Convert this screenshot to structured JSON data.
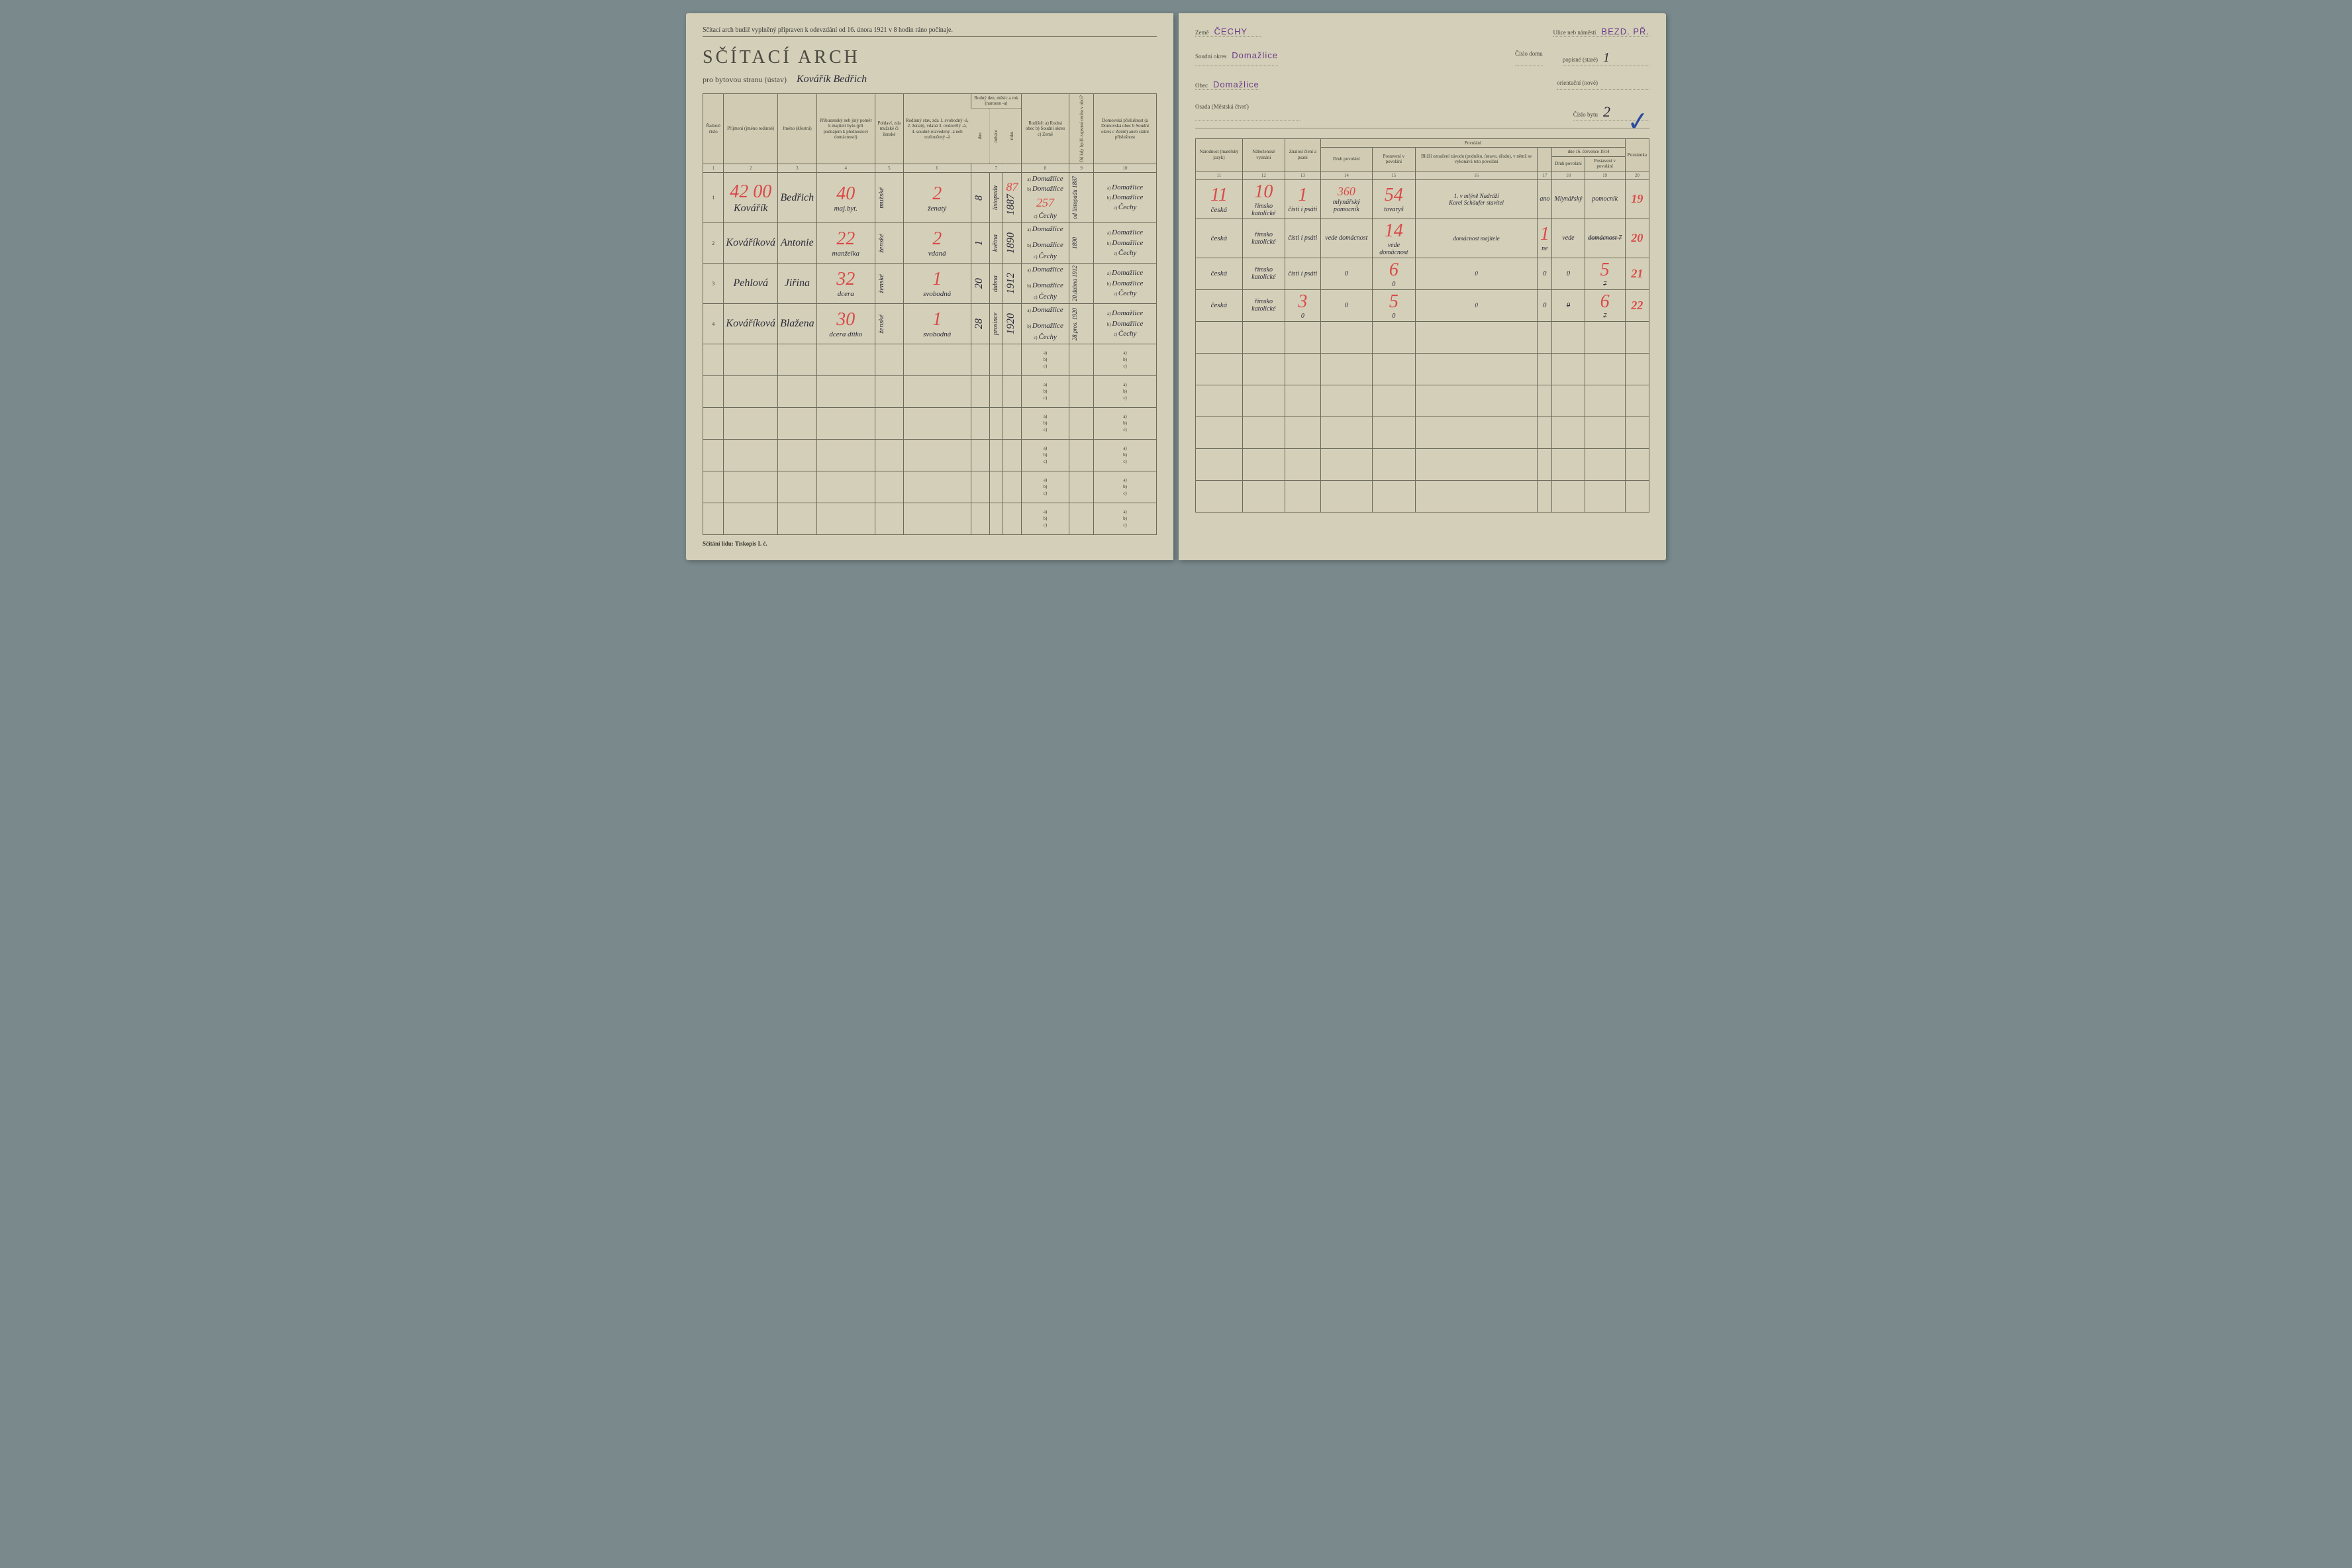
{
  "topline": "Sčítací arch budiž vyplněný připraven k odevzdání od 16. února 1921 v 8 hodin ráno počínaje.",
  "title": "SČÍTACÍ ARCH",
  "subtitle": "pro bytovou stranu (ústav)",
  "household_name": "Kovářík Bedřich",
  "footer_left": "Sčítání lidu: Tiskopis I. č.",
  "right_header": {
    "zeme_label": "Země",
    "zeme_val": "ČECHY",
    "soudni_okres_label": "Soudní okres",
    "soudni_okres_val": "Domažlice",
    "obec_label": "Obec",
    "obec_val": "Domažlice",
    "osada_label": "Osada (Městská čtvrť)",
    "osada_val": "",
    "ulice_label": "Ulice neb náměstí",
    "ulice_val": "BEZD. PŘ.",
    "cislo_domu_label": "Číslo domu",
    "popisne_label": "popisné (staré)",
    "popisne_val": "1",
    "orientacni_label": "orientační (nové)",
    "orientacni_val": "",
    "cislo_bytu_label": "Číslo bytu",
    "cislo_bytu_val": "2"
  },
  "left_headers": {
    "c1": "Řadové číslo",
    "c2": "Příjmení (jméno rodinné)",
    "c3": "Jméno (křestní)",
    "c4": "Příbuzenský neb jiný poměr k majiteli bytu (při podnájem k přednostovi domácnosti)",
    "c5": "Pohlaví, zda mužské či ženské",
    "c6": "Rodinný stav, zda 1. svobodný -á, 2. ženatý, vdaná 3. ovdovělý -á, 4. soudně rozvedený -á neb rozloučený -á",
    "c7": "Rodný den, měsíc a rok (narozen -a)",
    "c7a": "dne",
    "c7b": "měsíce",
    "c7c": "roku",
    "c8": "Rodiště: a) Rodná obec b) Soudní okres c) Země",
    "c9": "Od kdy bydlí zapsaná osoba v obci?",
    "c10": "Domovská příslušnost (a Domovská obec b Soudní okres c Země) aneb státní příslušnost",
    "nav": "viz návod §"
  },
  "right_headers": {
    "c11": "Národnost (mateřský jazyk)",
    "c12": "Náboženské vyznání",
    "c13": "Znalost čtení a psaní",
    "pov": "Povolání",
    "c14": "Druh povolání",
    "c15": "Postavení v povolání",
    "c16": "Bližší označení závodu (podniku, ústavu, úřadu), v němž se vykonává toto povolání",
    "c17": "",
    "c18_19": "dne 16. července 1914",
    "c18": "Druh povolání",
    "c19": "Postavení v povolání",
    "c20": "Poznámka"
  },
  "colnums_left": [
    "1",
    "2",
    "3",
    "4",
    "5",
    "6",
    "7",
    "",
    "",
    "8",
    "9",
    "10"
  ],
  "colnums_right": [
    "11",
    "12",
    "13",
    "14",
    "15",
    "16",
    "17",
    "18",
    "19",
    "20"
  ],
  "rows": [
    {
      "n": "1",
      "red1": "42",
      "red2": "00",
      "red3": "40",
      "prijmeni": "Kovářík",
      "jmeno": "Bedřich",
      "pomer": "maj.byt.",
      "pohlavi": "mužské",
      "stav_red": "2",
      "stav": "ženatý",
      "den": "8",
      "mesic": "listopadu",
      "rok": "1887",
      "rok_red": "87",
      "rodiste_a": "Domažlice",
      "rodiste_b": "Domažlice",
      "rodiste_c": "Čechy",
      "rodiste_red": "257",
      "odkdy": "od listopadu 1887",
      "dom_a": "Domažlice",
      "dom_b": "Domažlice",
      "dom_c": "Čechy",
      "narodnost_red": "11",
      "narodnost": "česká",
      "nabozenske_red": "10",
      "nabozenske": "římsko katolické",
      "znalost_red": "1",
      "znalost": "čísti i psáti",
      "druh_red": "360",
      "druh": "mlynářský pomocník",
      "postaveni_red": "54",
      "postaveni": "tovaryš",
      "zavod": "1. v mlýně Nadráží",
      "zavod2": "Karel Schäufer stavitel",
      "c17": "ano",
      "c18": "Mlynářský",
      "c19": "pomocník",
      "pozn_red": "19"
    },
    {
      "n": "2",
      "red1": "",
      "red2": "",
      "red3": "22",
      "prijmeni": "Kováříková",
      "jmeno": "Antonie",
      "pomer": "manželka",
      "pohlavi": "ženské",
      "stav_red": "2",
      "stav": "vdaná",
      "den": "1",
      "mesic": "května",
      "rok": "1890",
      "rodiste_a": "Domažlice",
      "rodiste_b": "Domažlice",
      "rodiste_c": "Čechy",
      "odkdy": "1890",
      "dom_a": "Domažlice",
      "dom_b": "Domažlice",
      "dom_c": "Čechy",
      "narodnost": "česká",
      "nabozenske": "římsko katolické",
      "znalost": "čísti i psáti",
      "druh": "vede domácnost",
      "postaveni_red": "14",
      "postaveni": "vede domácnost",
      "zavod": "domácnost majitele",
      "c17_red": "1",
      "c17": "ne",
      "c18": "vede",
      "c19": "domácnost",
      "strike19": "7",
      "pozn_red": "20"
    },
    {
      "n": "3",
      "red3": "32",
      "prijmeni": "Pehlová",
      "jmeno": "Jiřina",
      "pomer": "dcera",
      "pohlavi": "ženské",
      "stav_red": "1",
      "stav": "svobodná",
      "den": "20",
      "mesic": "dubna",
      "rok": "1912",
      "rodiste_a": "Domažlice",
      "rodiste_b": "Domažlice",
      "rodiste_c": "Čechy",
      "odkdy": "20.dubna 1912",
      "dom_a": "Domažlice",
      "dom_b": "Domažlice",
      "dom_c": "Čechy",
      "narodnost": "česká",
      "nabozenske": "římsko katolické",
      "znalost": "čísti i psáti",
      "druh": "0",
      "postaveni": "0",
      "postaveni_red": "6",
      "zavod": "0",
      "c17": "0",
      "c18": "0",
      "c19_red": "5",
      "strike19": "7",
      "pozn_red": "21"
    },
    {
      "n": "4",
      "red3": "30",
      "prijmeni": "Kováříková",
      "jmeno": "Blažena",
      "pomer": "dcera dítko",
      "pohlavi": "ženské",
      "stav_red": "1",
      "stav": "svobodná",
      "den": "28",
      "mesic": "prosince",
      "rok": "1920",
      "rodiste_a": "Domažlice",
      "rodiste_b": "Domažlice",
      "rodiste_c": "Čechy",
      "odkdy": "28.pros. 1920",
      "dom_a": "Domažlice",
      "dom_b": "Domažlice",
      "dom_c": "Čechy",
      "narodnost": "česká",
      "nabozenske": "římsko katolické",
      "znalost": "0",
      "znalost_red": "3",
      "druh": "0",
      "postaveni": "0",
      "postaveni_red": "5",
      "zavod": "0",
      "c17": "0",
      "c18_strike": "0",
      "c19_red": "6",
      "strike19": "7",
      "pozn_red": "22"
    }
  ]
}
